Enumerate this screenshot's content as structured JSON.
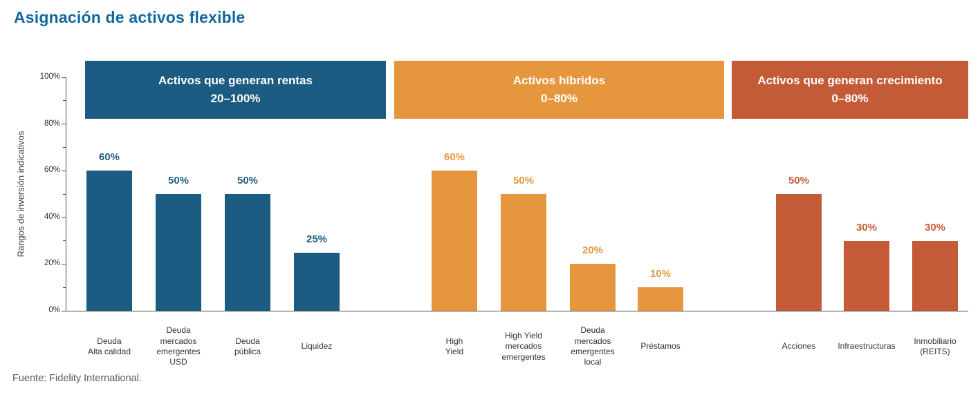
{
  "page": {
    "title": "Asignación de activos flexible",
    "source": "Fuente: Fidelity International."
  },
  "chart_data": {
    "type": "bar",
    "title": "Asignación de activos flexible",
    "xlabel": "",
    "ylabel": "Rangos de inversión indicativos",
    "ylim": [
      0,
      100
    ],
    "ytick_labels": [
      "0%",
      "20%",
      "40%",
      "60%",
      "80%",
      "100%"
    ],
    "grid": false,
    "legend": "none",
    "groups": [
      {
        "name": "Activos que generan rentas",
        "range": "20–100%",
        "color": "#1d5c82",
        "categories": [
          "Deuda\nAlta calidad",
          "Deuda\nmercados\nemergentes\nUSD",
          "Deuda\npública",
          "Liquidez"
        ],
        "values": [
          60,
          50,
          50,
          25
        ],
        "value_labels": [
          "60%",
          "50%",
          "50%",
          "25%"
        ]
      },
      {
        "name": "Activos híbridos",
        "range": "0–80%",
        "color": "#e6973e",
        "categories": [
          "High\nYield",
          "High Yield\nmercados\nemergentes",
          "Deuda\nmercados\nemergentes\nlocal",
          "Préstamos"
        ],
        "values": [
          60,
          50,
          20,
          10
        ],
        "value_labels": [
          "60%",
          "50%",
          "20%",
          "10%"
        ]
      },
      {
        "name": "Activos que generan crecimiento",
        "range": "0–80%",
        "color": "#c35b36",
        "categories": [
          "Acciones",
          "Infraestructuras",
          "Inmobiliario\n(REITS)"
        ],
        "values": [
          50,
          30,
          30
        ],
        "value_labels": [
          "50%",
          "30%",
          "30%"
        ]
      }
    ]
  }
}
